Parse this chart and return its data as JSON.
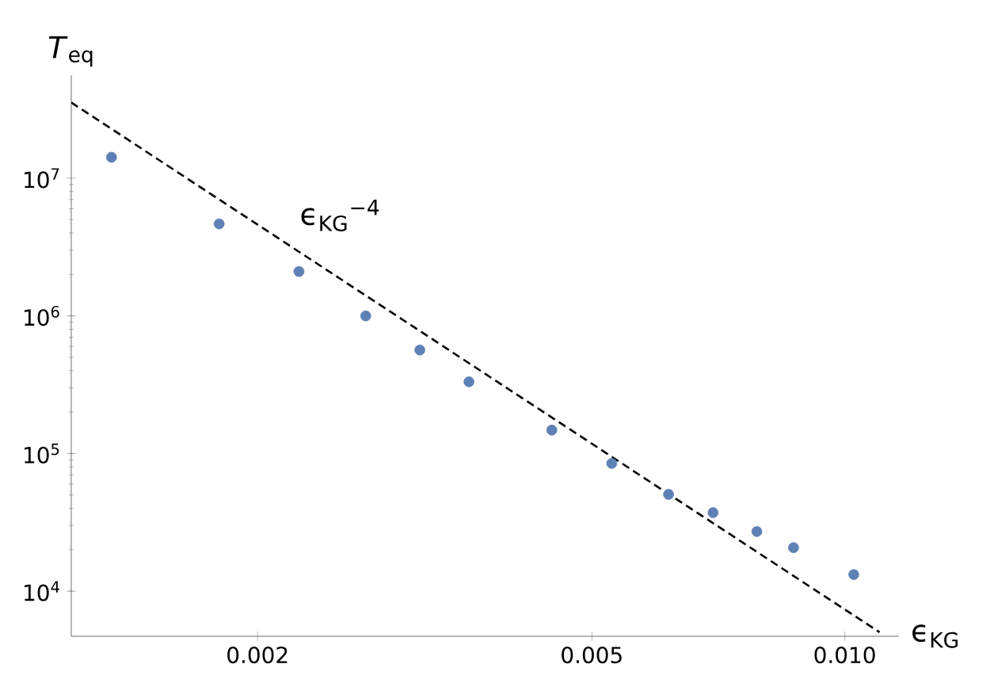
{
  "chart_data": {
    "type": "scatter",
    "xlabel": "ϵ$_{KG}$",
    "ylabel": "*T*$_{eq}$",
    "log": "xy",
    "xlim": [
      0.0012,
      0.0116
    ],
    "ylim": [
      4700,
      56000000
    ],
    "xticks": [
      0.002,
      0.005,
      {
        "value": 0.01,
        "label": "0.010"
      }
    ],
    "yticks": [
      {
        "value": 10000,
        "label": "10$^{4}$"
      },
      {
        "value": 100000,
        "label": "10$^{5}$"
      },
      {
        "value": 1000000,
        "label": "10$^{6}$"
      },
      {
        "value": 10000000,
        "label": "10$^{7}$"
      }
    ],
    "annotations": [
      "ϵ$_{KG}$$^{−4}$"
    ],
    "series": [
      {
        "marker": "circle",
        "color": "#5e81b5",
        "x": [
          0.00134,
          0.0018,
          0.00224,
          0.00269,
          0.00312,
          0.00357,
          0.00448,
          0.00528,
          0.00617,
          0.00697,
          0.00786,
          0.00869,
          0.01025
        ],
        "values": [
          14200000,
          4660000,
          2100000,
          1000000,
          565000,
          332000,
          148000,
          84700,
          50500,
          37200,
          27100,
          20700,
          13200
        ]
      },
      {
        "type": "line",
        "marker": "none",
        "line_style": "dashed",
        "color": "#000000",
        "x": [
          0.0012,
          0.011
        ],
        "values": [
          35500000,
          5030
        ]
      }
    ]
  }
}
